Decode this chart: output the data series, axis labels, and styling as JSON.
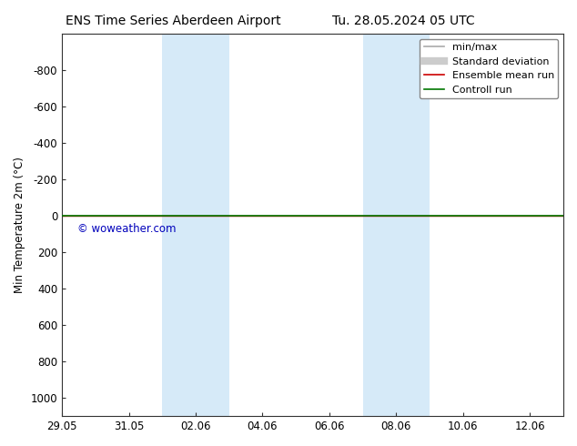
{
  "title_left": "ENS Time Series Aberdeen Airport",
  "title_right": "Tu. 28.05.2024 05 UTC",
  "ylabel": "Min Temperature 2m (°C)",
  "ylim": [
    -1000,
    1100
  ],
  "yticks": [
    -800,
    -600,
    -400,
    -200,
    0,
    200,
    400,
    600,
    800,
    1000
  ],
  "xtick_labels": [
    "29.05",
    "31.05",
    "02.06",
    "04.06",
    "06.06",
    "08.06",
    "10.06",
    "12.06"
  ],
  "xtick_positions": [
    0,
    2,
    4,
    6,
    8,
    10,
    12,
    14
  ],
  "xlim": [
    0,
    15
  ],
  "shaded_columns": [
    {
      "start": 3,
      "end": 5
    },
    {
      "start": 9,
      "end": 11
    }
  ],
  "green_line_y": 0,
  "green_line_color": "#007700",
  "red_line_y": 0,
  "red_line_color": "#cc0000",
  "watermark_text": "© woweather.com",
  "watermark_color": "#0000bb",
  "legend_entries": [
    {
      "label": "min/max",
      "color": "#aaaaaa",
      "lw": 1.2,
      "style": "solid"
    },
    {
      "label": "Standard deviation",
      "color": "#cccccc",
      "lw": 6,
      "style": "solid"
    },
    {
      "label": "Ensemble mean run",
      "color": "#cc0000",
      "lw": 1.2,
      "style": "solid"
    },
    {
      "label": "Controll run",
      "color": "#007700",
      "lw": 1.2,
      "style": "solid"
    }
  ],
  "bg_color": "#ffffff",
  "plot_bg_color": "#ffffff",
  "shaded_color": "#d6eaf8",
  "font_size": 8.5,
  "title_font_size": 10,
  "invert_yaxis": true
}
